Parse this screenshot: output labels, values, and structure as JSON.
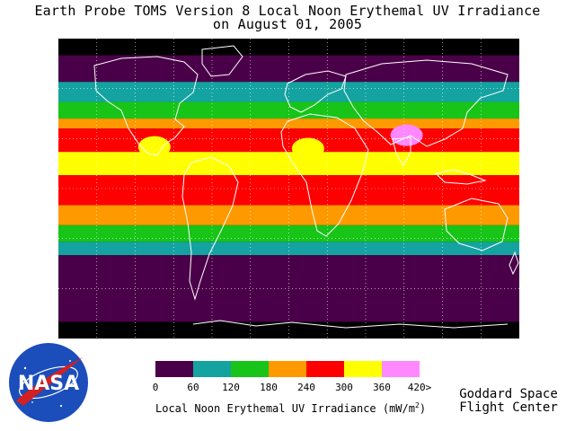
{
  "title": {
    "line1": "Earth Probe TOMS Version 8 Local Noon Erythemal UV Irradiance",
    "line2": "on August 01, 2005"
  },
  "legend": {
    "caption_prefix": "Local Noon Erythemal UV Irradiance (mW/m",
    "caption_exponent": "2",
    "caption_suffix": ")",
    "tick_labels": [
      "0",
      "60",
      "120",
      "180",
      "240",
      "300",
      "360",
      "420>"
    ],
    "bins": [
      {
        "min": 0,
        "max": 60,
        "color": "#4a0048"
      },
      {
        "min": 60,
        "max": 120,
        "color": "#14a3a0"
      },
      {
        "min": 120,
        "max": 180,
        "color": "#17c417"
      },
      {
        "min": 180,
        "max": 240,
        "color": "#ff9900"
      },
      {
        "min": 240,
        "max": 300,
        "color": "#ff0000"
      },
      {
        "min": 300,
        "max": 360,
        "color": "#ffff00"
      },
      {
        "min": 360,
        "max": 420,
        "color": "#ff88ff"
      }
    ]
  },
  "credit": {
    "line1": "Goddard Space",
    "line2": "Flight Center"
  },
  "logo": {
    "text": "NASA",
    "colors": {
      "blue": "#1b4dbb",
      "red": "#d42020"
    }
  },
  "map": {
    "background_color": "#000000",
    "coastline_color": "#ffffff",
    "grid": "dotted white graticule",
    "latitude_bands": [
      {
        "from_lat": 90,
        "to_lat": 80,
        "color": "#000000"
      },
      {
        "from_lat": 80,
        "to_lat": 64,
        "color": "#4a0048"
      },
      {
        "from_lat": 64,
        "to_lat": 52,
        "color": "#14a3a0"
      },
      {
        "from_lat": 52,
        "to_lat": 42,
        "color": "#17c417"
      },
      {
        "from_lat": 42,
        "to_lat": 36,
        "color": "#ff9900"
      },
      {
        "from_lat": 36,
        "to_lat": 22,
        "color": "#ff0000"
      },
      {
        "from_lat": 22,
        "to_lat": 8,
        "color": "#ffff00"
      },
      {
        "from_lat": 8,
        "to_lat": -10,
        "color": "#ff0000"
      },
      {
        "from_lat": -10,
        "to_lat": -22,
        "color": "#ff9900"
      },
      {
        "from_lat": -22,
        "to_lat": -32,
        "color": "#17c417"
      },
      {
        "from_lat": -32,
        "to_lat": -40,
        "color": "#14a3a0"
      },
      {
        "from_lat": -40,
        "to_lat": -80,
        "color": "#4a0048"
      },
      {
        "from_lat": -80,
        "to_lat": -90,
        "color": "#000000"
      }
    ],
    "features": [
      {
        "name": "tibet-high-uv",
        "lon": 92,
        "lat": 32,
        "color": "#ff88ff"
      },
      {
        "name": "sahara-high-uv",
        "lon": 15,
        "lat": 24,
        "color": "#ffff00"
      },
      {
        "name": "mexico-high-uv",
        "lon": -105,
        "lat": 25,
        "color": "#ffff00"
      }
    ]
  }
}
